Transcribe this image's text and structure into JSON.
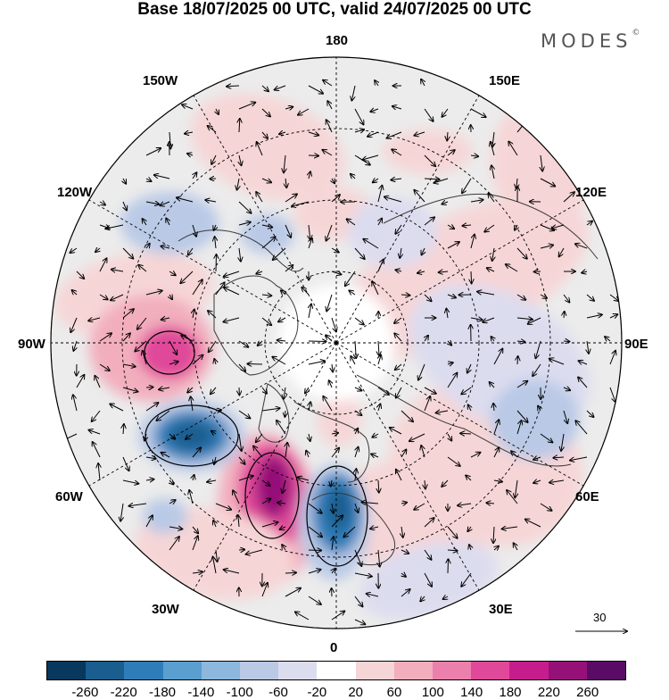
{
  "header": {
    "title": "Base 18/07/2025 00 UTC, valid 24/07/2025 00 UTC",
    "logo": "MODES",
    "logo_mark": "©"
  },
  "map_labels": {
    "north": "180",
    "south": "0",
    "west": "90W",
    "east": "90E",
    "nw1": "150W",
    "nw2": "120W",
    "ne1": "150E",
    "ne2": "120E",
    "sw1": "60W",
    "sw2": "30W",
    "se1": "60E",
    "se2": "30E"
  },
  "vector_scale": {
    "value": "30"
  },
  "colorbar": {
    "colors": [
      "#08385e",
      "#1a5d8f",
      "#2f7db8",
      "#5a9fd0",
      "#8db7dc",
      "#b9c9e6",
      "#dcdcef",
      "#ffffff",
      "#f6d5d6",
      "#f2aebd",
      "#ec80ac",
      "#e0489a",
      "#c61d8c",
      "#951178",
      "#5a0b66"
    ],
    "ticks": [
      "-260",
      "-220",
      "-180",
      "-140",
      "-100",
      "-60",
      "-20",
      "20",
      "60",
      "100",
      "140",
      "180",
      "220",
      "260"
    ]
  },
  "anomaly_palette": {
    "neutral": "#ececec",
    "weak_pos": "#f6d5d6",
    "mod_pos": "#f2aebd",
    "strong_pos": "#e0489a",
    "vstrong_pos": "#951178",
    "weak_neg": "#dcdcef",
    "mod_neg": "#b9c9e6",
    "strong_neg": "#2f7db8",
    "vstrong_neg": "#1a5d8f"
  }
}
